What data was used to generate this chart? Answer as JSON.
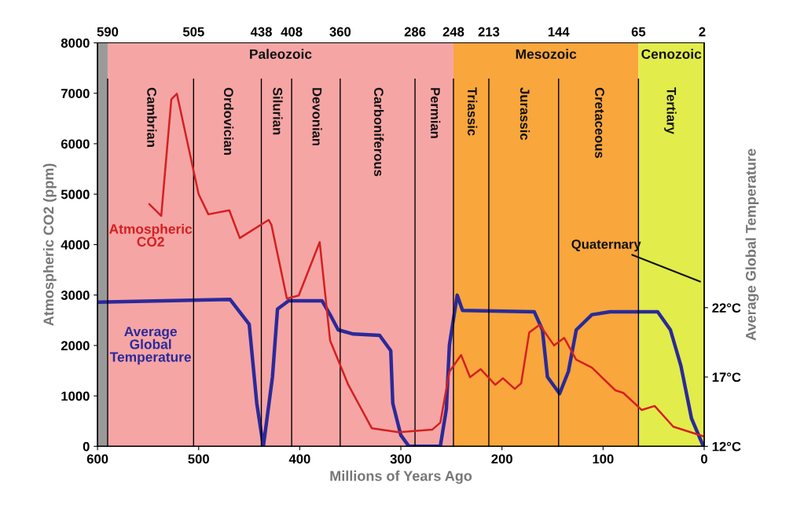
{
  "chart_data": {
    "type": "line",
    "xlabel": "Millions of Years Ago",
    "ylabel": "Atmospheric CO2 (ppm)",
    "y2label": "Average Global Temperature",
    "xlim": [
      600,
      0
    ],
    "xticks": [
      600,
      500,
      400,
      300,
      200,
      100,
      0
    ],
    "ylim": [
      0,
      8000
    ],
    "yticks": [
      0,
      1000,
      2000,
      3000,
      4000,
      5000,
      6000,
      7000,
      8000
    ],
    "y2lim": [
      12,
      41.1
    ],
    "y2ticks": [
      {
        "value": 12,
        "label": "12°C"
      },
      {
        "value": 17,
        "label": "17°C"
      },
      {
        "value": 22,
        "label": "22°C"
      }
    ],
    "x2lim": [
      600,
      0
    ],
    "x2ticks": [
      590,
      505,
      438,
      408,
      360,
      286,
      248,
      213,
      144,
      65,
      2
    ],
    "grid": false,
    "legend": false,
    "line_style": "solid",
    "marker": "none",
    "series": [
      {
        "name": "Atmospheric\nCO2",
        "color": "#d42020",
        "x": [
          548.7,
          537,
          527,
          521.5,
          500,
          490.4,
          469.7,
          459.3,
          430.8,
          428,
          412.7,
          401,
          380.3,
          370,
          352,
          328.8,
          302.6,
          269,
          261,
          252,
          240.4,
          231.6,
          221,
          206.7,
          199,
          187.3,
          181,
          173,
          162.7,
          148.5,
          138.5,
          126.6,
          111,
          87.8,
          80,
          61.7,
          49,
          30.6,
          1
        ],
        "values": [
          4800,
          4570,
          6880,
          6990,
          5000,
          4600,
          4680,
          4130,
          4490,
          4390,
          2930,
          2990,
          4050,
          2100,
          1220,
          360,
          280,
          330,
          470,
          1480,
          1810,
          1370,
          1530,
          1220,
          1350,
          1140,
          1250,
          2260,
          2410,
          2000,
          2150,
          1720,
          1560,
          1110,
          1060,
          720,
          800,
          390,
          200
        ]
      },
      {
        "name": "Average\nGlobal\nTemperature",
        "color": "#2a2a9a",
        "axis": "y2",
        "x": [
          600,
          469,
          450,
          442.5,
          436,
          427,
          422,
          411,
          378,
          370,
          362,
          347,
          321,
          310,
          308,
          300,
          292,
          261,
          255,
          252,
          246,
          244.3,
          239,
          168,
          160,
          155,
          143,
          134.3,
          126.5,
          111,
          93,
          46,
          33.4,
          23,
          12.5,
          0.8
        ],
        "values": [
          22.4,
          22.6,
          20.8,
          15.1,
          12,
          17,
          21.9,
          22.5,
          22.5,
          21.5,
          20.4,
          20.1,
          20.0,
          18.9,
          15.1,
          12.8,
          12,
          12,
          14.7,
          19.3,
          22.1,
          22.9,
          21.8,
          21.7,
          20.4,
          17,
          15.8,
          17.4,
          20.4,
          21.5,
          21.7,
          21.7,
          20.4,
          17.8,
          14,
          12
        ]
      }
    ],
    "bands": [
      {
        "axis": "x",
        "from": 600,
        "to": 590,
        "color": "#9a9a9a"
      },
      {
        "axis": "x",
        "from": 590,
        "to": 248,
        "label": "Paleozoic",
        "color": "#f6a5a5"
      },
      {
        "axis": "x",
        "from": 248,
        "to": 65,
        "label": "Mesozoic",
        "color": "#f9a63c"
      },
      {
        "axis": "x",
        "from": 65,
        "to": 0,
        "label": "Cenozoic",
        "color": "#e2ec4a"
      }
    ],
    "ref_lines": [
      {
        "axis": "x",
        "value": 590,
        "color": "#000000"
      },
      {
        "axis": "x",
        "value": 505,
        "color": "#000000"
      },
      {
        "axis": "x",
        "value": 438,
        "color": "#000000"
      },
      {
        "axis": "x",
        "value": 408,
        "color": "#000000"
      },
      {
        "axis": "x",
        "value": 360,
        "color": "#000000"
      },
      {
        "axis": "x",
        "value": 286,
        "color": "#000000"
      },
      {
        "axis": "x",
        "value": 248,
        "color": "#000000"
      },
      {
        "axis": "x",
        "value": 213,
        "color": "#000000"
      },
      {
        "axis": "x",
        "value": 144,
        "color": "#000000"
      },
      {
        "axis": "x",
        "value": 65,
        "color": "#000000"
      }
    ],
    "annotations": [
      "Cambrian",
      "Ordovician",
      "Silurian",
      "Devonian",
      "Carboniferous",
      "Permian",
      "Triassic",
      "Jurassic",
      "Cretaceous",
      "Tertiary",
      {
        "text": "Quaternary",
        "x": 2,
        "y": 3250
      }
    ]
  }
}
